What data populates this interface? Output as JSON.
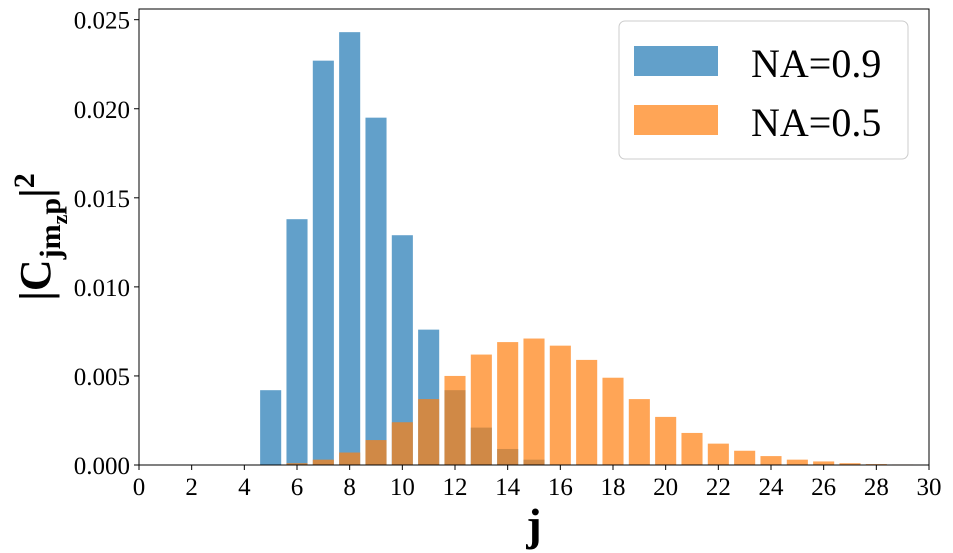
{
  "chart_data": {
    "type": "bar",
    "xlabel": "j",
    "ylabel": {
      "prefix": "|C",
      "subscript": "jm",
      "subsubscript": "z",
      "subscript_tail": "p",
      "suffix": "|",
      "superscript": "2"
    },
    "xlim": [
      0,
      30
    ],
    "ylim": [
      0,
      0.0256
    ],
    "xticks": [
      0,
      2,
      4,
      6,
      8,
      10,
      12,
      14,
      16,
      18,
      20,
      22,
      24,
      26,
      28,
      30
    ],
    "yticks": [
      0.0,
      0.005,
      0.01,
      0.015,
      0.02,
      0.025
    ],
    "ytick_labels": [
      "0.000",
      "0.005",
      "0.010",
      "0.015",
      "0.020",
      "0.025"
    ],
    "legend_position": "top-right",
    "series": [
      {
        "name": "NA=0.9",
        "color": "#1f77b4",
        "opacity": 0.7,
        "x": [
          5,
          6,
          7,
          8,
          9,
          10,
          11,
          12,
          13,
          14,
          15
        ],
        "values": [
          0.0042,
          0.0138,
          0.0227,
          0.0243,
          0.0195,
          0.0129,
          0.0076,
          0.0042,
          0.0021,
          0.0009,
          0.0003
        ]
      },
      {
        "name": "NA=0.5",
        "color": "#ff7f0e",
        "opacity": 0.7,
        "x": [
          6,
          7,
          8,
          9,
          10,
          11,
          12,
          13,
          14,
          15,
          16,
          17,
          18,
          19,
          20,
          21,
          22,
          23,
          24,
          25,
          26,
          27,
          28,
          29
        ],
        "values": [
          0.0001,
          0.0003,
          0.0007,
          0.0014,
          0.0024,
          0.0037,
          0.005,
          0.0062,
          0.0069,
          0.0071,
          0.0067,
          0.0059,
          0.0049,
          0.0037,
          0.0027,
          0.0018,
          0.0012,
          0.0008,
          0.0005,
          0.0003,
          0.0002,
          0.0001,
          5e-05,
          3e-05
        ]
      }
    ]
  }
}
